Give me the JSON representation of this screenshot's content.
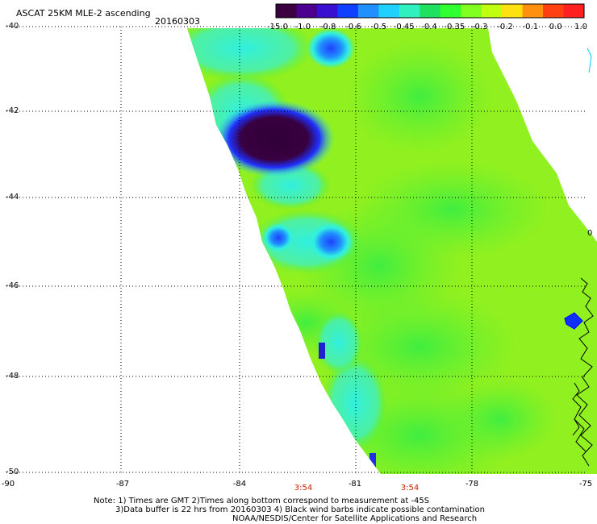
{
  "header": {
    "title": "ASCAT 25KM MLE-2 ascending",
    "date": "20160303"
  },
  "colorbar": {
    "ticks": [
      "-15.0",
      "-1.0",
      "-0.8",
      "-0.6",
      "-0.5",
      "-0.45",
      "-0.4",
      "-0.35",
      "-0.3",
      "-0.2",
      "-0.1",
      "0.0",
      "1.0"
    ],
    "colors": [
      "#3a0040",
      "#4b0090",
      "#3a10d0",
      "#1040ff",
      "#2090ff",
      "#20d0ff",
      "#30f0c0",
      "#20e060",
      "#30ff30",
      "#80ff20",
      "#c0ff10",
      "#ffe010",
      "#ff9010",
      "#ff4010",
      "#ff2020"
    ]
  },
  "map": {
    "lat_labels": [
      "-40",
      "-42",
      "-44",
      "-46",
      "-48",
      "-50"
    ],
    "lon_labels": [
      "-90",
      "-87",
      "-84",
      "-81",
      "-78",
      "-75"
    ],
    "time_labels": [
      "3:54",
      "3:54"
    ],
    "colors": {
      "swath_base": "#90f020",
      "green": "#50f030",
      "cyan": "#30f0e0",
      "blue": "#2040ff",
      "dark": "#380040",
      "grid": "#000000",
      "coast": "#0000ff"
    }
  },
  "footer": {
    "line1": "Note: 1) Times are GMT 2)Times along bottom correspond to measurement at -45S",
    "line2": "3)Data buffer is 22 hrs from 20160303 4) Black wind barbs indicate possible contamination",
    "line3": "NOAA/NESDIS/Center for Satellite Applications and Research"
  }
}
